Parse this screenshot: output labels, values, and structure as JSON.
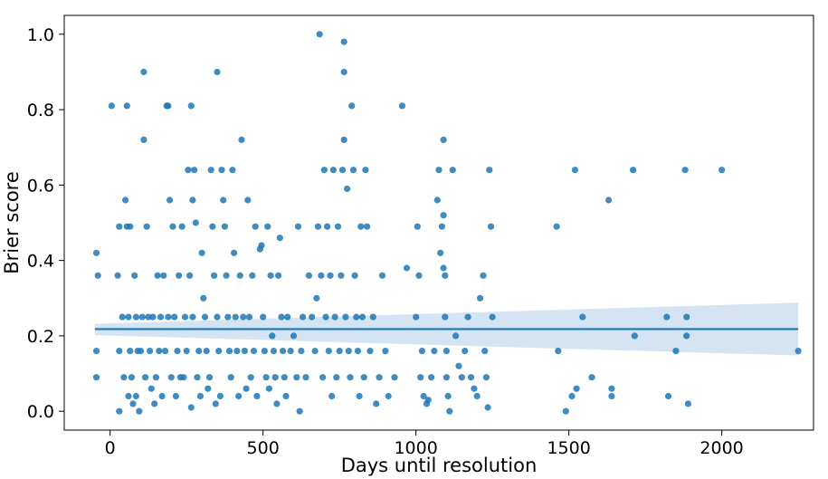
{
  "chart_data": {
    "type": "scatter",
    "title": "",
    "xlabel": "Days until resolution",
    "ylabel": "Brier score",
    "xlim": [
      -150,
      2300
    ],
    "ylim": [
      -0.05,
      1.05
    ],
    "xticks": [
      0,
      500,
      1000,
      1500,
      2000
    ],
    "yticks": [
      0.0,
      0.2,
      0.4,
      0.6,
      0.8,
      1.0
    ],
    "xtick_labels": [
      "0",
      "500",
      "1000",
      "1500",
      "2000"
    ],
    "ytick_labels": [
      "0.0",
      "0.2",
      "0.4",
      "0.6",
      "0.8",
      "1.0"
    ],
    "grid": false,
    "legend": "none",
    "colors": {
      "points": "#1f77b4",
      "line": "#1f77b4",
      "band": "#c6dbef"
    },
    "regression": {
      "x": [
        -50,
        2250
      ],
      "y": [
        0.218,
        0.218
      ],
      "ci_lower": [
        0.202,
        0.148
      ],
      "ci_upper": [
        0.232,
        0.288
      ]
    },
    "points": [
      [
        -45,
        0.42
      ],
      [
        -45,
        0.16
      ],
      [
        -45,
        0.09
      ],
      [
        -40,
        0.36
      ],
      [
        5,
        0.81
      ],
      [
        25,
        0.36
      ],
      [
        30,
        0.0
      ],
      [
        30,
        0.16
      ],
      [
        30,
        0.49
      ],
      [
        40,
        0.25
      ],
      [
        45,
        0.09
      ],
      [
        50,
        0.56
      ],
      [
        55,
        0.81
      ],
      [
        55,
        0.49
      ],
      [
        60,
        0.25
      ],
      [
        60,
        0.04
      ],
      [
        65,
        0.49
      ],
      [
        65,
        0.16
      ],
      [
        70,
        0.09
      ],
      [
        75,
        0.02
      ],
      [
        80,
        0.36
      ],
      [
        85,
        0.25
      ],
      [
        85,
        0.04
      ],
      [
        90,
        0.16
      ],
      [
        95,
        0.0
      ],
      [
        100,
        0.16
      ],
      [
        105,
        0.25
      ],
      [
        110,
        0.9
      ],
      [
        110,
        0.72
      ],
      [
        115,
        0.09
      ],
      [
        120,
        0.49
      ],
      [
        125,
        0.25
      ],
      [
        130,
        0.16
      ],
      [
        135,
        0.06
      ],
      [
        140,
        0.25
      ],
      [
        145,
        0.02
      ],
      [
        150,
        0.09
      ],
      [
        155,
        0.36
      ],
      [
        160,
        0.16
      ],
      [
        165,
        0.25
      ],
      [
        170,
        0.04
      ],
      [
        175,
        0.36
      ],
      [
        180,
        0.16
      ],
      [
        185,
        0.81
      ],
      [
        190,
        0.81
      ],
      [
        190,
        0.25
      ],
      [
        195,
        0.56
      ],
      [
        200,
        0.09
      ],
      [
        205,
        0.49
      ],
      [
        210,
        0.25
      ],
      [
        215,
        0.04
      ],
      [
        220,
        0.16
      ],
      [
        225,
        0.36
      ],
      [
        230,
        0.09
      ],
      [
        235,
        0.49
      ],
      [
        240,
        0.09
      ],
      [
        245,
        0.25
      ],
      [
        250,
        0.16
      ],
      [
        255,
        0.64
      ],
      [
        260,
        0.36
      ],
      [
        265,
        0.81
      ],
      [
        265,
        0.01
      ],
      [
        270,
        0.56
      ],
      [
        270,
        0.25
      ],
      [
        275,
        0.64
      ],
      [
        280,
        0.5
      ],
      [
        285,
        0.09
      ],
      [
        290,
        0.16
      ],
      [
        295,
        0.04
      ],
      [
        300,
        0.42
      ],
      [
        305,
        0.3
      ],
      [
        310,
        0.25
      ],
      [
        315,
        0.16
      ],
      [
        320,
        0.06
      ],
      [
        325,
        0.09
      ],
      [
        330,
        0.64
      ],
      [
        335,
        0.49
      ],
      [
        340,
        0.36
      ],
      [
        345,
        0.02
      ],
      [
        350,
        0.9
      ],
      [
        350,
        0.25
      ],
      [
        355,
        0.16
      ],
      [
        360,
        0.04
      ],
      [
        365,
        0.64
      ],
      [
        370,
        0.56
      ],
      [
        375,
        0.49
      ],
      [
        380,
        0.36
      ],
      [
        385,
        0.25
      ],
      [
        390,
        0.16
      ],
      [
        395,
        0.09
      ],
      [
        400,
        0.64
      ],
      [
        405,
        0.42
      ],
      [
        410,
        0.25
      ],
      [
        415,
        0.16
      ],
      [
        420,
        0.04
      ],
      [
        425,
        0.36
      ],
      [
        430,
        0.72
      ],
      [
        435,
        0.25
      ],
      [
        440,
        0.16
      ],
      [
        445,
        0.06
      ],
      [
        450,
        0.56
      ],
      [
        455,
        0.25
      ],
      [
        460,
        0.09
      ],
      [
        465,
        0.36
      ],
      [
        470,
        0.16
      ],
      [
        475,
        0.49
      ],
      [
        480,
        0.04
      ],
      [
        490,
        0.43
      ],
      [
        495,
        0.44
      ],
      [
        500,
        0.25
      ],
      [
        505,
        0.16
      ],
      [
        510,
        0.09
      ],
      [
        515,
        0.49
      ],
      [
        520,
        0.06
      ],
      [
        525,
        0.36
      ],
      [
        530,
        0.2
      ],
      [
        535,
        0.16
      ],
      [
        540,
        0.09
      ],
      [
        545,
        0.02
      ],
      [
        550,
        0.36
      ],
      [
        555,
        0.46
      ],
      [
        560,
        0.25
      ],
      [
        565,
        0.16
      ],
      [
        570,
        0.09
      ],
      [
        575,
        0.04
      ],
      [
        580,
        0.25
      ],
      [
        590,
        0.16
      ],
      [
        600,
        0.2
      ],
      [
        610,
        0.09
      ],
      [
        615,
        0.49
      ],
      [
        620,
        0.0
      ],
      [
        625,
        0.16
      ],
      [
        630,
        0.25
      ],
      [
        640,
        0.09
      ],
      [
        650,
        0.36
      ],
      [
        660,
        0.25
      ],
      [
        670,
        0.16
      ],
      [
        675,
        0.3
      ],
      [
        680,
        0.49
      ],
      [
        685,
        1.0
      ],
      [
        690,
        0.36
      ],
      [
        695,
        0.09
      ],
      [
        700,
        0.64
      ],
      [
        705,
        0.25
      ],
      [
        710,
        0.49
      ],
      [
        715,
        0.16
      ],
      [
        720,
        0.36
      ],
      [
        725,
        0.04
      ],
      [
        730,
        0.64
      ],
      [
        735,
        0.25
      ],
      [
        740,
        0.09
      ],
      [
        745,
        0.49
      ],
      [
        750,
        0.16
      ],
      [
        755,
        0.36
      ],
      [
        760,
        0.64
      ],
      [
        765,
        0.98
      ],
      [
        765,
        0.9
      ],
      [
        765,
        0.72
      ],
      [
        770,
        0.25
      ],
      [
        775,
        0.59
      ],
      [
        780,
        0.16
      ],
      [
        785,
        0.09
      ],
      [
        790,
        0.81
      ],
      [
        795,
        0.64
      ],
      [
        800,
        0.36
      ],
      [
        805,
        0.25
      ],
      [
        810,
        0.16
      ],
      [
        815,
        0.04
      ],
      [
        820,
        0.49
      ],
      [
        825,
        0.25
      ],
      [
        830,
        0.09
      ],
      [
        835,
        0.64
      ],
      [
        840,
        0.49
      ],
      [
        850,
        0.16
      ],
      [
        860,
        0.25
      ],
      [
        870,
        0.02
      ],
      [
        880,
        0.09
      ],
      [
        890,
        0.36
      ],
      [
        900,
        0.16
      ],
      [
        910,
        0.04
      ],
      [
        930,
        0.09
      ],
      [
        955,
        0.81
      ],
      [
        970,
        0.38
      ],
      [
        1000,
        0.25
      ],
      [
        1005,
        0.49
      ],
      [
        1010,
        0.36
      ],
      [
        1015,
        0.09
      ],
      [
        1020,
        0.16
      ],
      [
        1025,
        0.04
      ],
      [
        1035,
        0.02
      ],
      [
        1040,
        0.03
      ],
      [
        1050,
        0.09
      ],
      [
        1060,
        0.16
      ],
      [
        1070,
        0.56
      ],
      [
        1075,
        0.64
      ],
      [
        1080,
        0.42
      ],
      [
        1085,
        0.49
      ],
      [
        1090,
        0.72
      ],
      [
        1090,
        0.52
      ],
      [
        1090,
        0.38
      ],
      [
        1095,
        0.36
      ],
      [
        1095,
        0.25
      ],
      [
        1100,
        0.16
      ],
      [
        1100,
        0.09
      ],
      [
        1105,
        0.04
      ],
      [
        1110,
        0.0
      ],
      [
        1120,
        0.64
      ],
      [
        1130,
        0.2
      ],
      [
        1140,
        0.12
      ],
      [
        1150,
        0.09
      ],
      [
        1160,
        0.16
      ],
      [
        1170,
        0.25
      ],
      [
        1180,
        0.09
      ],
      [
        1190,
        0.06
      ],
      [
        1200,
        0.04
      ],
      [
        1210,
        0.3
      ],
      [
        1220,
        0.36
      ],
      [
        1225,
        0.16
      ],
      [
        1230,
        0.09
      ],
      [
        1235,
        0.01
      ],
      [
        1240,
        0.64
      ],
      [
        1245,
        0.49
      ],
      [
        1250,
        0.25
      ],
      [
        1460,
        0.49
      ],
      [
        1465,
        0.16
      ],
      [
        1490,
        0.0
      ],
      [
        1510,
        0.04
      ],
      [
        1520,
        0.64
      ],
      [
        1525,
        0.06
      ],
      [
        1545,
        0.25
      ],
      [
        1575,
        0.09
      ],
      [
        1630,
        0.56
      ],
      [
        1640,
        0.04
      ],
      [
        1640,
        0.06
      ],
      [
        1710,
        0.64
      ],
      [
        1715,
        0.2
      ],
      [
        1820,
        0.25
      ],
      [
        1825,
        0.04
      ],
      [
        1850,
        0.16
      ],
      [
        1880,
        0.64
      ],
      [
        1885,
        0.25
      ],
      [
        1885,
        0.2
      ],
      [
        1890,
        0.02
      ],
      [
        2000,
        0.64
      ],
      [
        2250,
        0.16
      ]
    ]
  }
}
